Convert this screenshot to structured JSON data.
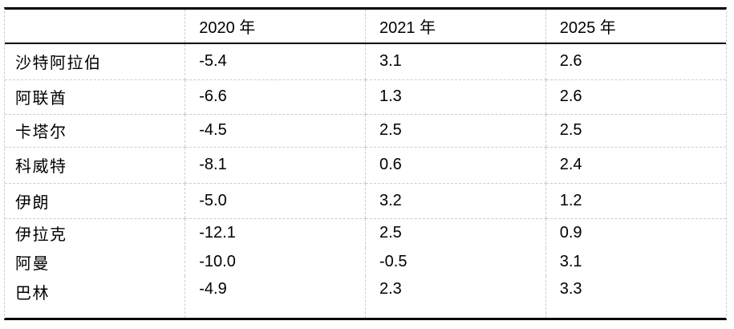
{
  "table": {
    "columns": [
      "",
      "2020 年",
      "2021 年",
      "2025 年"
    ],
    "rows": [
      {
        "label": "沙特阿拉伯",
        "values": [
          "-5.4",
          "3.1",
          "2.6"
        ]
      },
      {
        "label": "阿联酋",
        "values": [
          "-6.6",
          "1.3",
          "2.6"
        ]
      },
      {
        "label": "卡塔尔",
        "values": [
          "-4.5",
          "2.5",
          "2.5"
        ]
      },
      {
        "label": "科威特",
        "values": [
          "-8.1",
          "0.6",
          "2.4"
        ]
      },
      {
        "label": "伊朗",
        "values": [
          "-5.0",
          "3.2",
          "1.2"
        ]
      },
      {
        "label": "伊拉克",
        "values": [
          "-12.1",
          "2.5",
          "0.9"
        ]
      },
      {
        "label": "阿曼",
        "values": [
          "-10.0",
          "-0.5",
          "3.1"
        ]
      },
      {
        "label": "巴林",
        "values": [
          "-4.9",
          "2.3",
          "3.3"
        ]
      }
    ]
  },
  "colors": {
    "text": "#000000",
    "heavy_border": "#000000",
    "gridline_dashed": "#cccccc",
    "background": "#ffffff"
  },
  "chart_data": {
    "type": "table",
    "title": "",
    "categories": [
      "沙特阿拉伯",
      "阿联酋",
      "卡塔尔",
      "科威特",
      "伊朗",
      "伊拉克",
      "阿曼",
      "巴林"
    ],
    "series": [
      {
        "name": "2020 年",
        "values": [
          -5.4,
          -6.6,
          -4.5,
          -8.1,
          -5.0,
          -12.1,
          -10.0,
          -4.9
        ]
      },
      {
        "name": "2021 年",
        "values": [
          3.1,
          1.3,
          2.5,
          0.6,
          3.2,
          2.5,
          -0.5,
          2.3
        ]
      },
      {
        "name": "2025 年",
        "values": [
          2.6,
          2.6,
          2.5,
          2.4,
          1.2,
          0.9,
          3.1,
          3.3
        ]
      }
    ],
    "layout": {
      "grid": "dashed-light-gray",
      "header_rule": "solid-black",
      "outer_rule": "thick-black-top-bottom"
    }
  }
}
